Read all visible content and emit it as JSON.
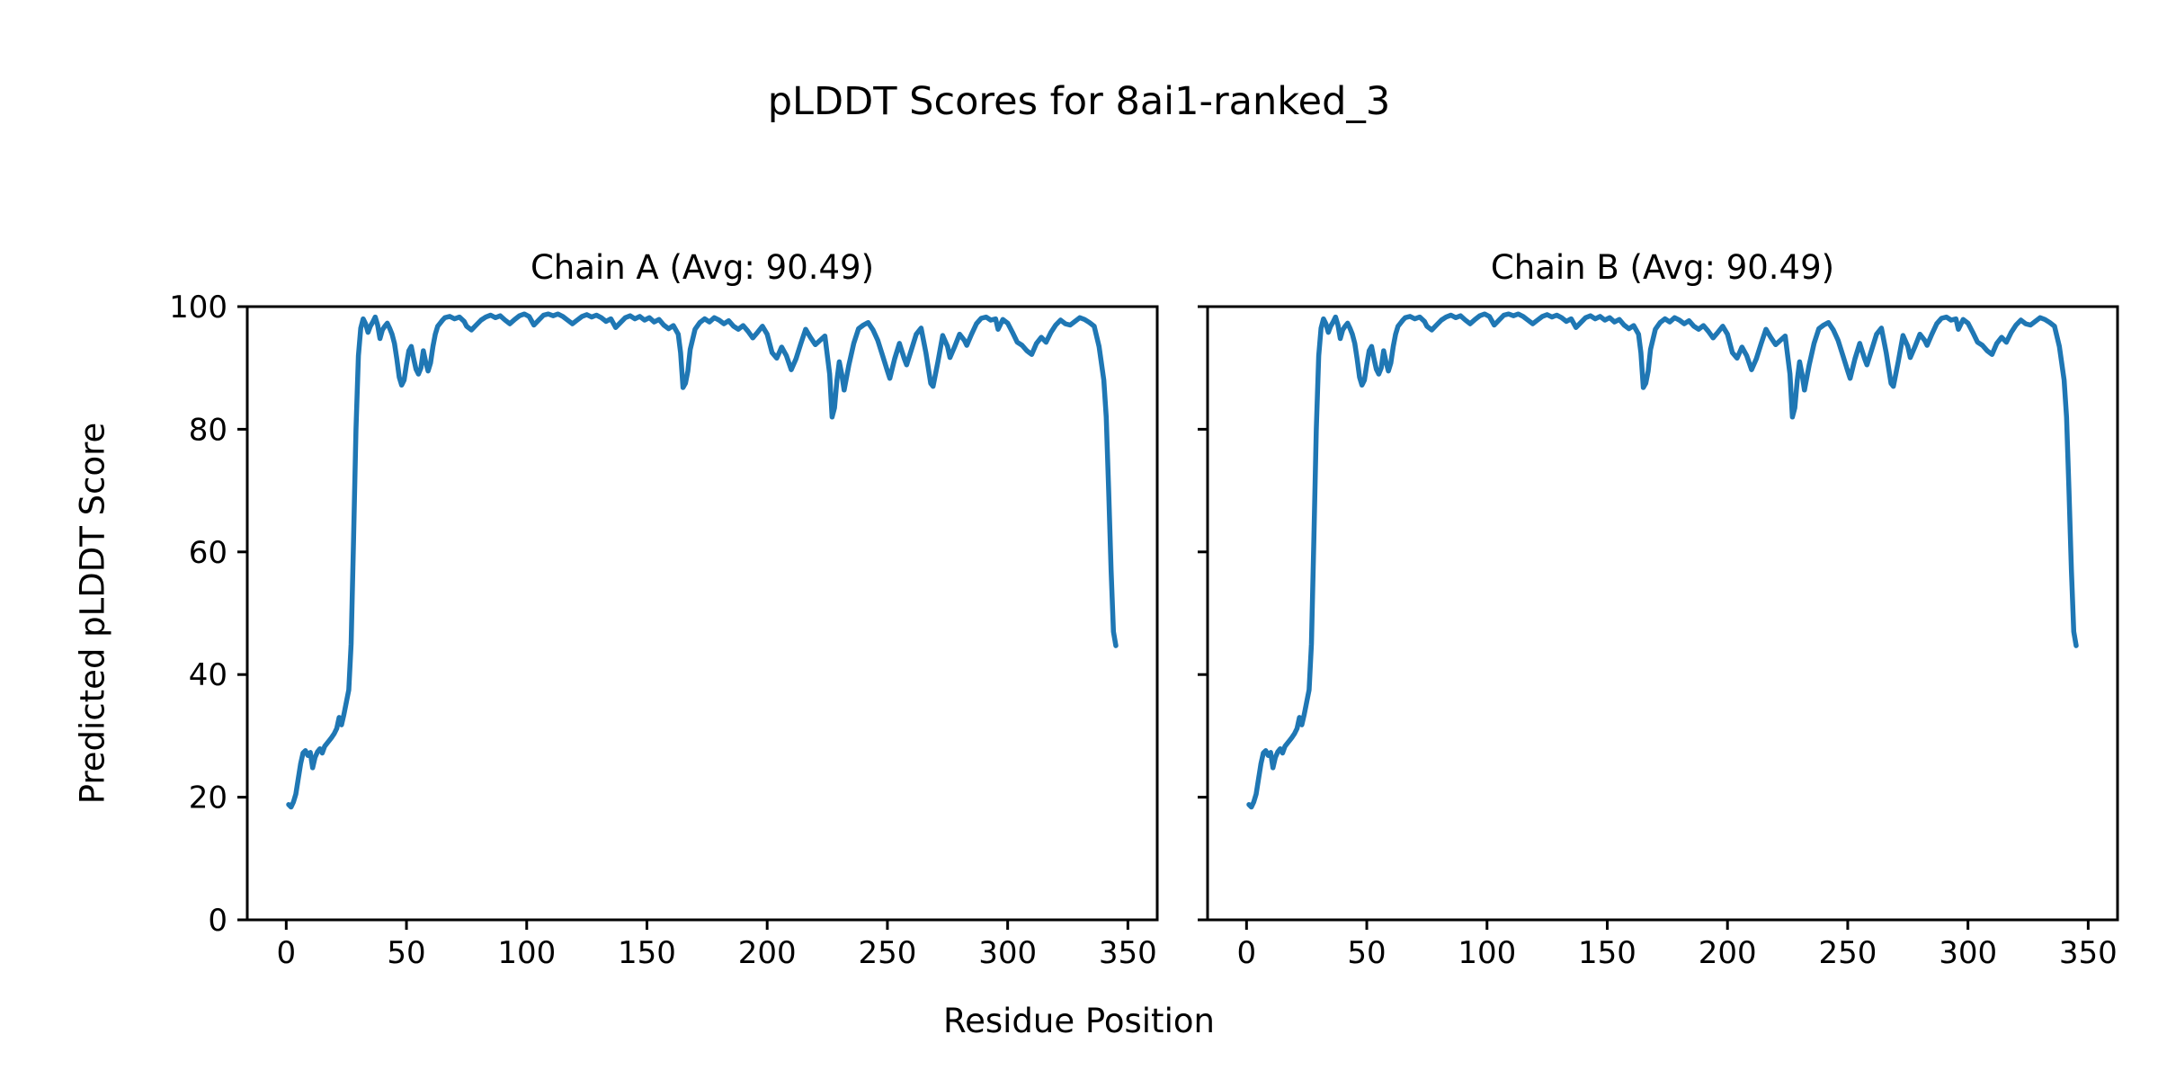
{
  "figure": {
    "background": "#ffffff"
  },
  "chart_data": {
    "type": "line",
    "suptitle": "pLDDT Scores for 8ai1-ranked_3",
    "xlabel": "Residue Position",
    "ylabel": "Predicted pLDDT Score",
    "xlim": [
      -16.2,
      362.2
    ],
    "ylim": [
      0,
      100
    ],
    "xticks": [
      0,
      50,
      100,
      150,
      200,
      250,
      300,
      350
    ],
    "yticks": [
      0,
      20,
      40,
      60,
      80,
      100
    ],
    "grid": false,
    "legend": "none",
    "line_color": "#1f77b4",
    "spine_color": "#000000",
    "text_color": "#000000",
    "subplots": [
      {
        "title": "Chain A (Avg: 90.49)",
        "chain": "A",
        "avg": 90.49,
        "series": "plddt",
        "show_y_tick_labels": true
      },
      {
        "title": "Chain B (Avg: 90.49)",
        "chain": "B",
        "avg": 90.49,
        "series": "plddt",
        "show_y_tick_labels": false
      }
    ],
    "series": {
      "plddt": {
        "x": [
          1,
          2,
          3,
          4,
          5,
          6,
          7,
          8,
          9,
          10,
          11,
          12,
          13,
          14,
          15,
          16,
          17,
          18,
          19,
          20,
          21,
          22,
          23,
          24,
          25,
          26,
          27,
          28,
          29,
          30,
          31,
          32,
          33,
          34,
          35,
          36,
          37,
          38,
          39,
          40,
          41,
          42,
          43,
          44,
          45,
          46,
          47,
          48,
          49,
          50,
          51,
          52,
          53,
          54,
          55,
          56,
          57,
          58,
          59,
          60,
          61,
          62,
          63,
          64,
          65,
          66,
          68,
          70,
          72,
          74,
          75,
          77,
          79,
          81,
          83,
          85,
          87,
          89,
          91,
          93,
          95,
          97,
          99,
          101,
          103,
          105,
          107,
          109,
          111,
          113,
          115,
          117,
          119,
          121,
          123,
          125,
          127,
          129,
          131,
          133,
          135,
          137,
          139,
          141,
          143,
          145,
          147,
          149,
          151,
          153,
          155,
          157,
          159,
          161,
          163,
          164,
          165,
          166,
          167,
          168,
          170,
          172,
          174,
          176,
          178,
          180,
          182,
          184,
          186,
          188,
          190,
          192,
          194,
          196,
          198,
          200,
          202,
          204,
          206,
          208,
          210,
          212,
          214,
          216,
          218,
          220,
          222,
          224,
          226,
          227,
          228,
          229,
          230,
          231,
          232,
          234,
          236,
          238,
          240,
          242,
          244,
          246,
          248,
          250,
          251,
          253,
          255,
          257,
          258,
          260,
          262,
          264,
          266,
          268,
          269,
          271,
          273,
          275,
          276,
          278,
          280,
          282,
          283,
          285,
          287,
          289,
          291,
          293,
          295,
          296,
          298,
          300,
          302,
          304,
          306,
          308,
          310,
          312,
          314,
          316,
          318,
          320,
          322,
          324,
          326,
          328,
          330,
          332,
          334,
          336,
          338,
          340,
          341,
          342,
          343,
          344,
          345
        ],
        "y": [
          18.8,
          18.4,
          19.2,
          20.5,
          23.0,
          25.5,
          27.2,
          27.6,
          26.8,
          27.3,
          24.8,
          26.5,
          27.4,
          27.9,
          27.2,
          28.3,
          28.8,
          29.3,
          29.8,
          30.4,
          31.2,
          33.0,
          31.8,
          33.5,
          35.5,
          37.5,
          45.0,
          62.0,
          80.0,
          92.0,
          96.5,
          98.0,
          97.2,
          95.8,
          96.8,
          97.5,
          98.3,
          97.0,
          94.8,
          96.2,
          96.8,
          97.3,
          96.5,
          95.5,
          94.0,
          91.5,
          88.5,
          87.2,
          88.0,
          90.5,
          92.8,
          93.5,
          91.5,
          89.8,
          89.0,
          90.0,
          92.8,
          91.0,
          89.5,
          90.8,
          93.5,
          95.5,
          96.8,
          97.3,
          97.8,
          98.2,
          98.4,
          98.0,
          98.3,
          97.6,
          96.8,
          96.2,
          97.0,
          97.8,
          98.3,
          98.6,
          98.2,
          98.5,
          97.8,
          97.2,
          97.9,
          98.5,
          98.8,
          98.4,
          97.0,
          97.8,
          98.6,
          98.8,
          98.5,
          98.8,
          98.4,
          97.8,
          97.2,
          97.8,
          98.4,
          98.7,
          98.3,
          98.6,
          98.2,
          97.6,
          98.0,
          96.6,
          97.4,
          98.2,
          98.5,
          98.0,
          98.4,
          97.8,
          98.2,
          97.5,
          97.9,
          97.0,
          96.4,
          96.9,
          95.5,
          92.5,
          86.8,
          87.5,
          89.5,
          93.0,
          96.3,
          97.4,
          98.0,
          97.5,
          98.2,
          97.8,
          97.2,
          97.7,
          96.8,
          96.3,
          96.9,
          96.0,
          94.9,
          95.8,
          96.8,
          95.5,
          92.5,
          91.6,
          93.4,
          92.0,
          89.7,
          91.5,
          94.0,
          96.3,
          95.0,
          93.8,
          94.5,
          95.2,
          89.0,
          82.0,
          83.5,
          88.0,
          91.0,
          89.0,
          86.4,
          90.5,
          94.0,
          96.4,
          97.0,
          97.4,
          96.2,
          94.5,
          92.0,
          89.5,
          88.3,
          91.5,
          94.0,
          91.5,
          90.5,
          93.0,
          95.5,
          96.5,
          92.5,
          87.5,
          87.0,
          91.0,
          95.3,
          93.5,
          91.7,
          93.5,
          95.5,
          94.5,
          93.7,
          95.5,
          97.2,
          98.1,
          98.3,
          97.8,
          98.0,
          96.3,
          97.9,
          97.3,
          95.8,
          94.2,
          93.7,
          92.8,
          92.2,
          94.0,
          95.0,
          94.2,
          95.8,
          97.0,
          97.8,
          97.2,
          97.0,
          97.6,
          98.2,
          97.9,
          97.4,
          96.8,
          93.5,
          88.0,
          82.0,
          70.0,
          57.0,
          47.0,
          44.7
        ]
      }
    }
  }
}
